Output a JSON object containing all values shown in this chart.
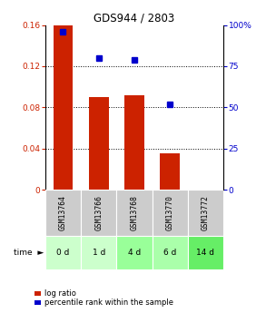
{
  "title": "GDS944 / 2803",
  "samples": [
    "GSM13764",
    "GSM13766",
    "GSM13768",
    "GSM13770",
    "GSM13772"
  ],
  "time_labels": [
    "0 d",
    "1 d",
    "4 d",
    "6 d",
    "14 d"
  ],
  "log_ratio": [
    0.16,
    0.09,
    0.092,
    0.035,
    0.0
  ],
  "percentile_rank": [
    96,
    80,
    79,
    52,
    null
  ],
  "bar_color": "#cc2200",
  "dot_color": "#0000cc",
  "ylim_left": [
    0,
    0.16
  ],
  "ylim_right": [
    0,
    100
  ],
  "yticks_left": [
    0,
    0.04,
    0.08,
    0.12,
    0.16
  ],
  "ytick_labels_left": [
    "0",
    "0.04",
    "0.08",
    "0.12",
    "0.16"
  ],
  "yticks_right": [
    0,
    25,
    50,
    75,
    100
  ],
  "ytick_labels_right": [
    "0",
    "25",
    "50",
    "75",
    "100%"
  ],
  "sample_bg_color": "#cccccc",
  "time_bg_colors": [
    "#ccffcc",
    "#ccffcc",
    "#99ff99",
    "#aaffaa",
    "#66ee66"
  ],
  "bar_width": 0.55,
  "legend_items": [
    {
      "color": "#cc2200",
      "label": "log ratio"
    },
    {
      "color": "#0000cc",
      "label": "percentile rank within the sample"
    }
  ]
}
